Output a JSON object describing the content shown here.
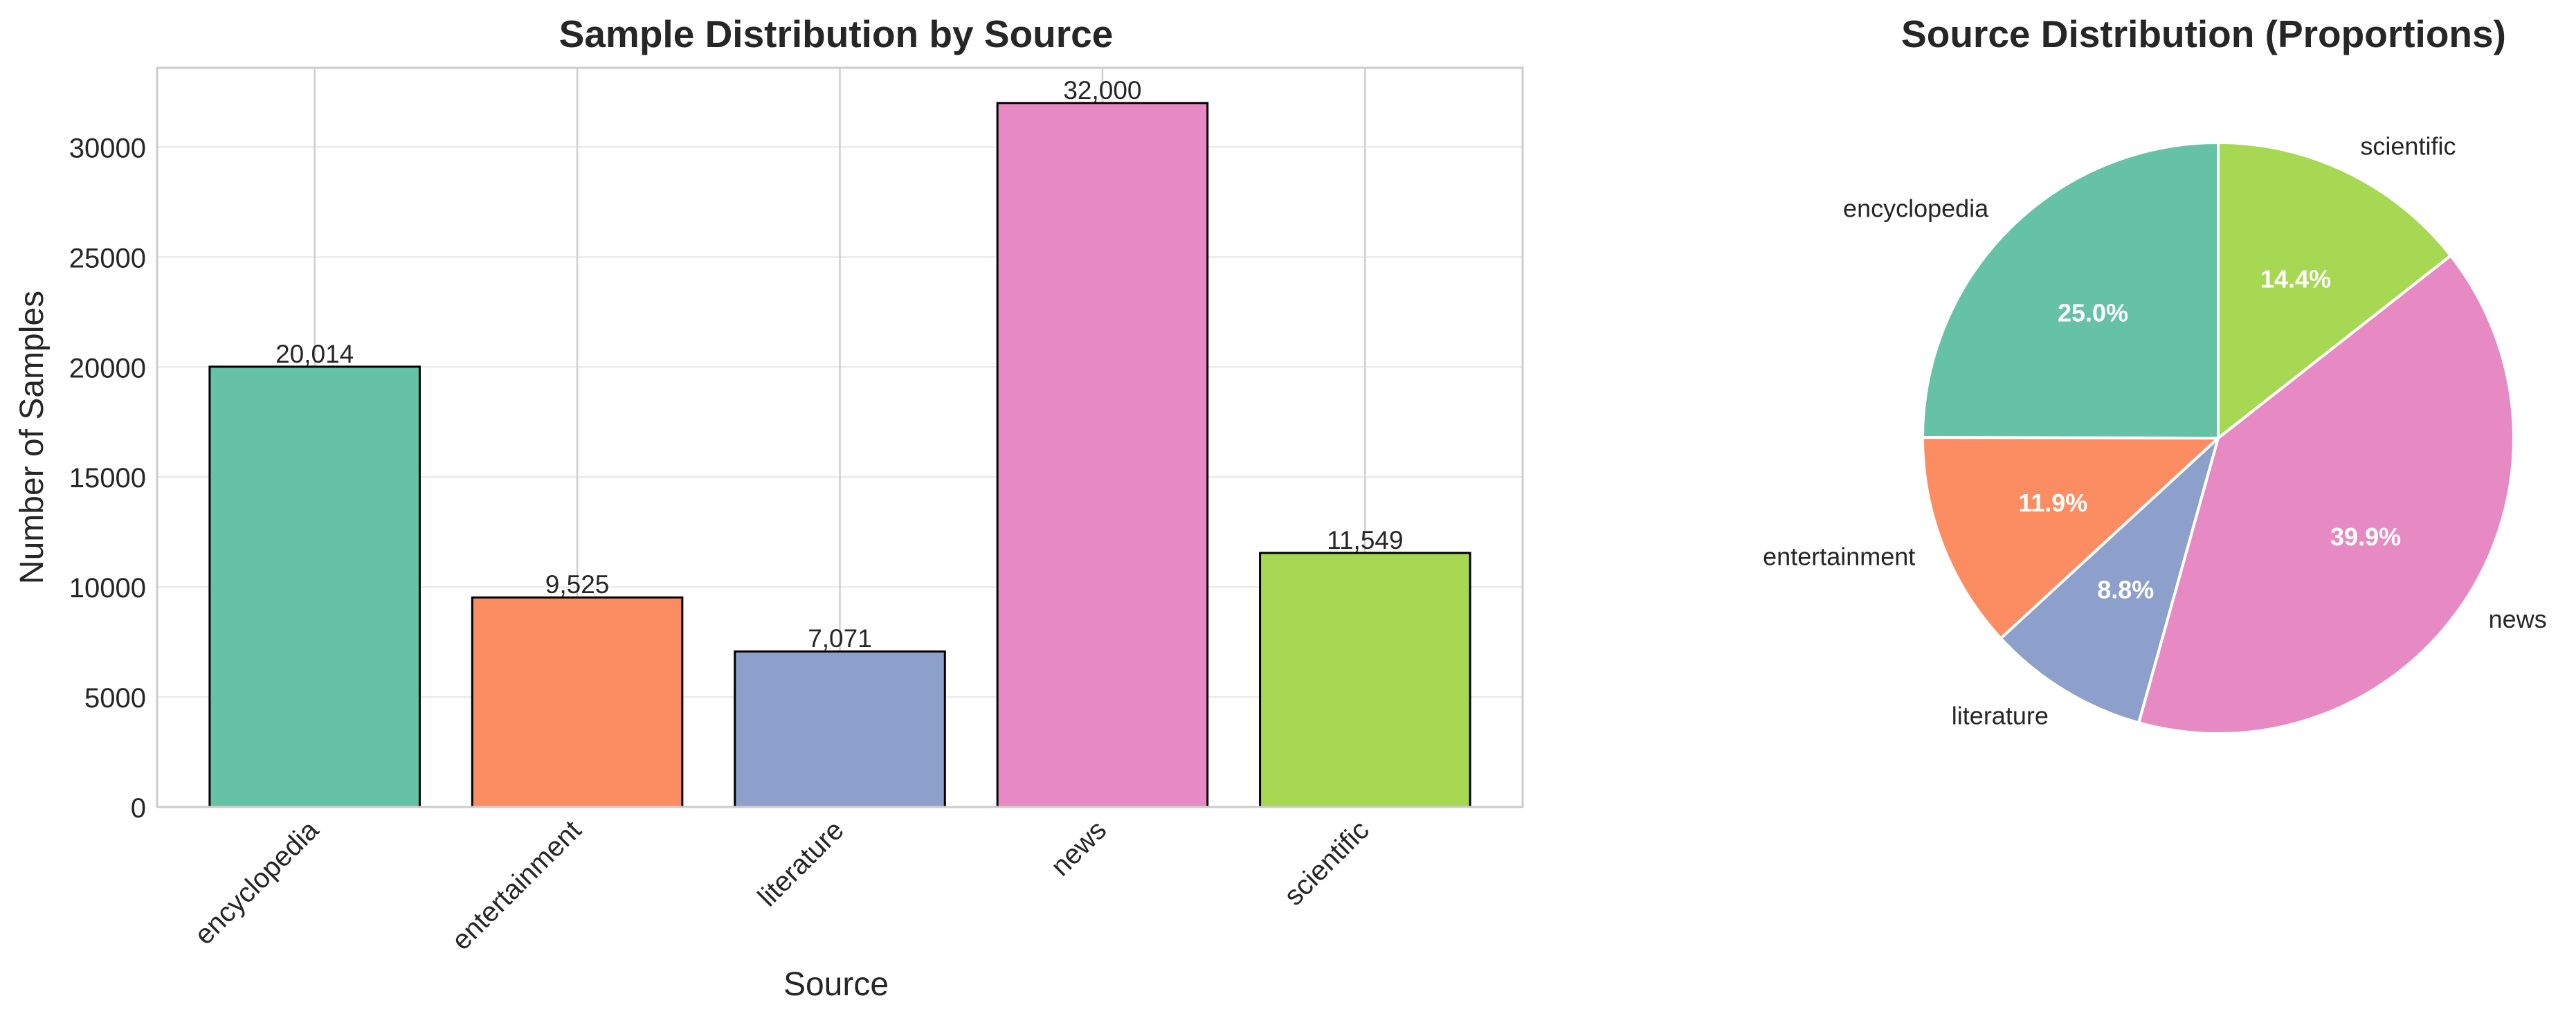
{
  "chart_data": [
    {
      "type": "bar",
      "title": "Sample Distribution by Source",
      "xlabel": "Source",
      "ylabel": "Number of Samples",
      "categories": [
        "encyclopedia",
        "entertainment",
        "literature",
        "news",
        "scientific"
      ],
      "values": [
        20014,
        9525,
        7071,
        32000,
        11549
      ],
      "value_labels": [
        "20,014",
        "9,525",
        "7,071",
        "32,000",
        "11,549"
      ],
      "ylim": [
        0,
        33600
      ],
      "yticks": [
        0,
        5000,
        10000,
        15000,
        20000,
        25000,
        30000
      ],
      "ytick_labels": [
        "0",
        "5000",
        "10000",
        "15000",
        "20000",
        "25000",
        "30000"
      ],
      "grid": true,
      "colors": [
        "#66c2a5",
        "#fc8d62",
        "#8da0cb",
        "#e78ac3",
        "#a6d854"
      ],
      "edge_color": "#000000"
    },
    {
      "type": "pie",
      "title": "Source Distribution (Proportions)",
      "labels": [
        "encyclopedia",
        "entertainment",
        "literature",
        "news",
        "scientific"
      ],
      "values": [
        20014,
        9525,
        7071,
        32000,
        11549
      ],
      "percent_labels": [
        "25.0%",
        "11.9%",
        "8.8%",
        "39.9%",
        "14.4%"
      ],
      "start_angle_deg": 90,
      "direction": "counterclockwise",
      "colors": [
        "#66c2a5",
        "#fc8d62",
        "#8da0cb",
        "#e78ac3",
        "#a6d854"
      ],
      "wedge_edge_color": "#ffffff",
      "percent_text_color": "#ffffff"
    }
  ]
}
